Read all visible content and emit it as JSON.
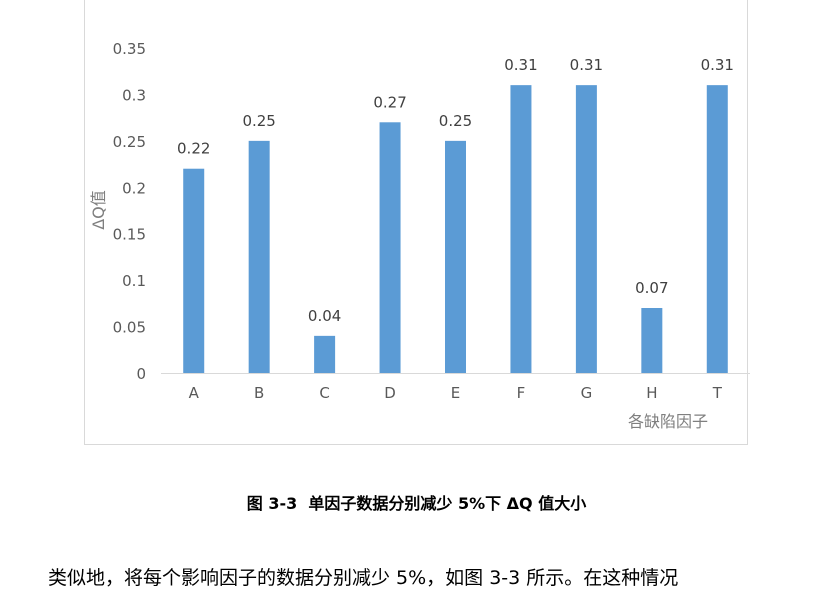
{
  "chart_data": {
    "type": "bar",
    "categories": [
      "A",
      "B",
      "C",
      "D",
      "E",
      "F",
      "G",
      "H",
      "T"
    ],
    "values": [
      0.22,
      0.25,
      0.04,
      0.27,
      0.25,
      0.31,
      0.31,
      0.07,
      0.31
    ],
    "data_labels": [
      "0.22",
      "0.25",
      "0.04",
      "0.27",
      "0.25",
      "0.31",
      "0.31",
      "0.07",
      "0.31"
    ],
    "y_ticks": [
      "0",
      "0.05",
      "0.1",
      "0.15",
      "0.2",
      "0.25",
      "0.3",
      "0.35"
    ],
    "ylim": [
      0,
      0.35
    ],
    "ylabel": "ΔQ值",
    "xlabel": "各缺陷因子",
    "bar_color": "#5b9bd5",
    "grid": false,
    "legend": "none"
  },
  "caption": "图 3-3  单因子数据分别减少 5%下 ΔQ 值大小",
  "body_text": "类似地，将每个影响因子的数据分别减少 5%，如图 3-3 所示。在这种情况"
}
